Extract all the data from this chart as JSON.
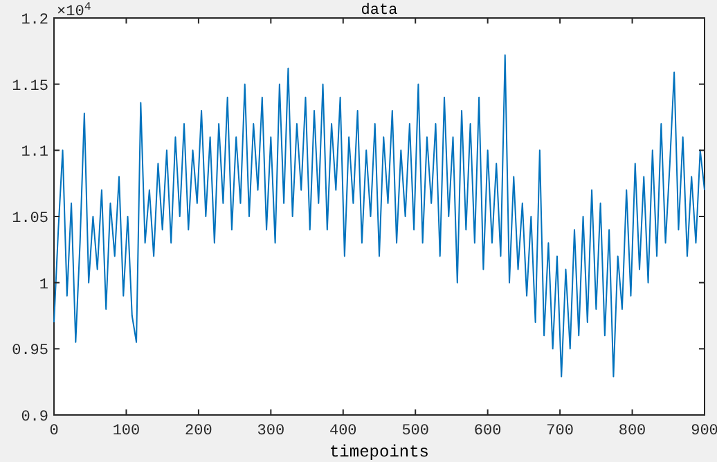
{
  "chart_data": {
    "type": "line",
    "title": "data",
    "xlabel": "timepoints",
    "annotations": [
      "×10$^{4}$"
    ],
    "xlim": [
      0,
      900
    ],
    "xticks": [
      0,
      100,
      200,
      300,
      400,
      500,
      600,
      700,
      800,
      900
    ],
    "ylim": [
      0.9,
      1.2
    ],
    "yticks": [
      0.9,
      0.95,
      1,
      1.05,
      1.1,
      1.15,
      1.2
    ],
    "grid": false,
    "x": [
      0,
      6,
      12,
      18,
      24,
      30,
      36,
      42,
      48,
      54,
      60,
      66,
      72,
      78,
      84,
      90,
      96,
      102,
      108,
      114,
      120,
      126,
      132,
      138,
      144,
      150,
      156,
      162,
      168,
      174,
      180,
      186,
      192,
      198,
      204,
      210,
      216,
      222,
      228,
      234,
      240,
      246,
      252,
      258,
      264,
      270,
      276,
      282,
      288,
      294,
      300,
      306,
      312,
      318,
      324,
      330,
      336,
      342,
      348,
      354,
      360,
      366,
      372,
      378,
      384,
      390,
      396,
      402,
      408,
      414,
      420,
      426,
      432,
      438,
      444,
      450,
      456,
      462,
      468,
      474,
      480,
      486,
      492,
      498,
      504,
      510,
      516,
      522,
      528,
      534,
      540,
      546,
      552,
      558,
      564,
      570,
      576,
      582,
      588,
      594,
      600,
      606,
      612,
      618,
      624,
      630,
      636,
      642,
      648,
      654,
      660,
      666,
      672,
      678,
      684,
      690,
      696,
      702,
      708,
      714,
      720,
      726,
      732,
      738,
      744,
      750,
      756,
      762,
      768,
      774,
      780,
      786,
      792,
      798,
      804,
      810,
      816,
      822,
      828,
      834,
      840,
      846,
      852,
      858,
      864,
      870,
      876,
      882,
      888,
      894,
      900
    ],
    "series": [
      {
        "color": "#0072bd",
        "values": [
          0.97,
          1.04,
          1.1,
          0.99,
          1.06,
          0.955,
          1.03,
          1.128,
          1.0,
          1.05,
          1.01,
          1.07,
          0.98,
          1.06,
          1.02,
          1.08,
          0.99,
          1.05,
          0.975,
          0.955,
          1.136,
          1.03,
          1.07,
          1.02,
          1.09,
          1.04,
          1.1,
          1.03,
          1.11,
          1.05,
          1.12,
          1.04,
          1.1,
          1.06,
          1.13,
          1.05,
          1.11,
          1.03,
          1.12,
          1.06,
          1.14,
          1.04,
          1.11,
          1.06,
          1.15,
          1.05,
          1.12,
          1.07,
          1.14,
          1.04,
          1.11,
          1.03,
          1.15,
          1.06,
          1.162,
          1.05,
          1.12,
          1.07,
          1.14,
          1.04,
          1.13,
          1.06,
          1.15,
          1.04,
          1.12,
          1.07,
          1.14,
          1.02,
          1.11,
          1.06,
          1.13,
          1.03,
          1.1,
          1.05,
          1.12,
          1.02,
          1.11,
          1.06,
          1.13,
          1.03,
          1.1,
          1.05,
          1.12,
          1.04,
          1.15,
          1.03,
          1.11,
          1.06,
          1.12,
          1.02,
          1.14,
          1.05,
          1.11,
          1.0,
          1.13,
          1.04,
          1.12,
          1.03,
          1.14,
          1.01,
          1.1,
          1.03,
          1.09,
          1.02,
          1.172,
          1.0,
          1.08,
          1.01,
          1.06,
          0.99,
          1.05,
          0.97,
          1.1,
          0.96,
          1.03,
          0.95,
          1.02,
          0.929,
          1.01,
          0.95,
          1.04,
          0.96,
          1.05,
          0.97,
          1.07,
          0.98,
          1.06,
          0.96,
          1.04,
          0.929,
          1.02,
          0.98,
          1.07,
          0.99,
          1.09,
          1.01,
          1.08,
          1.0,
          1.1,
          1.02,
          1.12,
          1.03,
          1.09,
          1.159,
          1.04,
          1.11,
          1.02,
          1.08,
          1.03,
          1.1,
          1.07
        ]
      }
    ]
  }
}
